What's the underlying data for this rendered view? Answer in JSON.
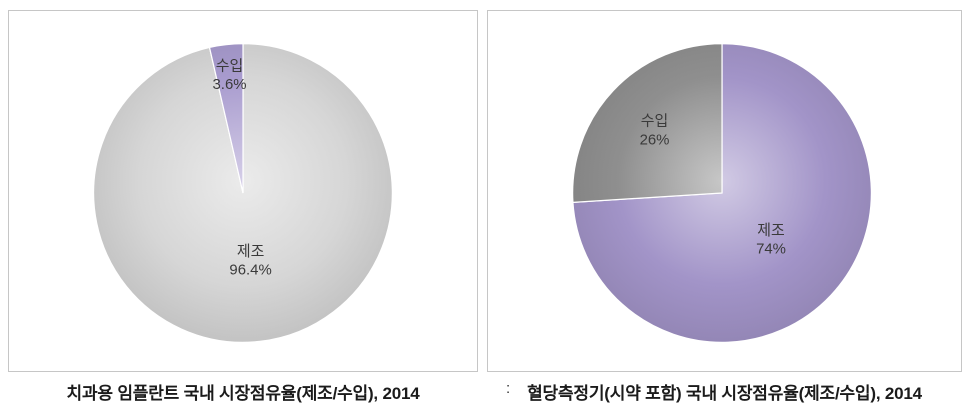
{
  "separator": ":",
  "chart_data": [
    {
      "type": "pie",
      "title": "치과용 임플란트 국내 시장점유율(제조/수입), 2014",
      "labels": [
        "제조",
        "수입"
      ],
      "values": [
        96.4,
        3.6
      ],
      "value_labels": [
        "96.4%",
        "3.6%"
      ],
      "colors": [
        "#d6d6d6",
        "#a89bce"
      ],
      "start_angle": 0,
      "direction": "clockwise",
      "legend": "none",
      "data_labels_inside": true
    },
    {
      "type": "pie",
      "title": "혈당측정기(시약 포함) 국내 시장점유율(제조/수입), 2014",
      "labels": [
        "제조",
        "수입"
      ],
      "values": [
        74,
        26
      ],
      "value_labels": [
        "74%",
        "26%"
      ],
      "colors": [
        "#a294c8",
        "#8f8f8f"
      ],
      "start_angle": 0,
      "direction": "clockwise",
      "legend": "none",
      "data_labels_inside": true
    }
  ]
}
